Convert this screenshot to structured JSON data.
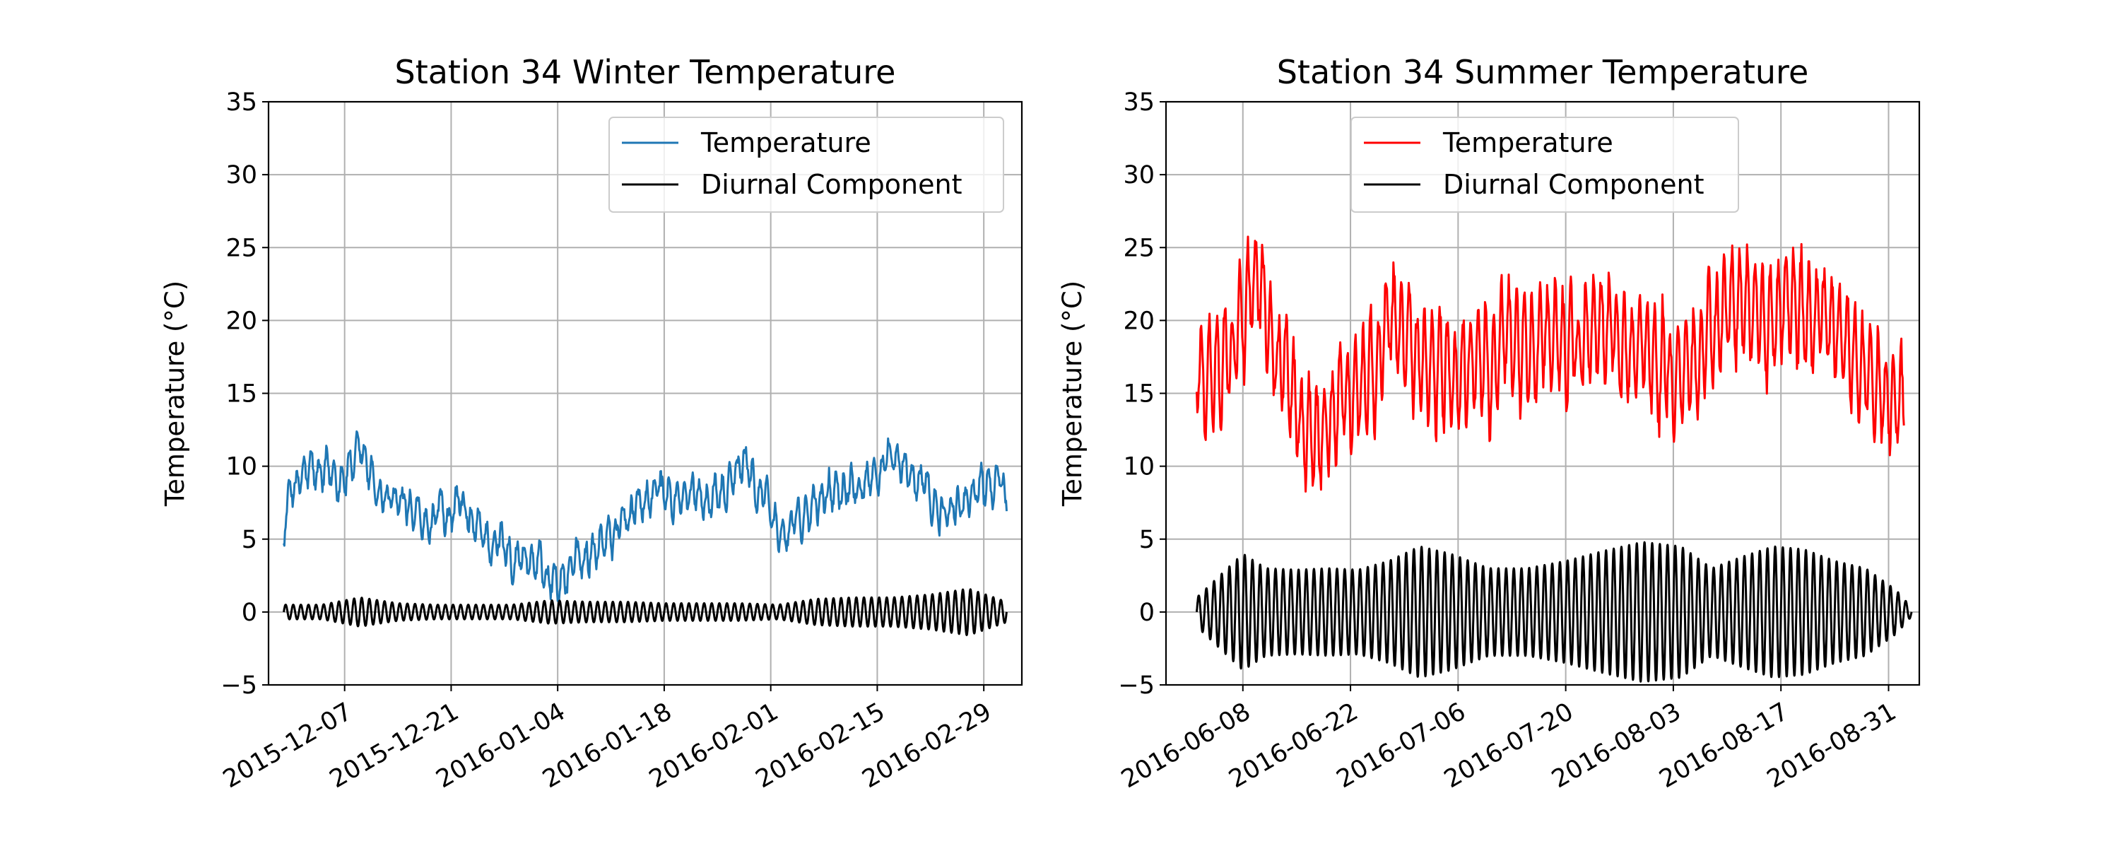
{
  "chart_data": [
    {
      "type": "line",
      "title": "Station 34 Winter Temperature",
      "xlabel": "",
      "ylabel": "Temperature ($^\\circ$C)",
      "ylim": [
        -5,
        35
      ],
      "yticks": [
        -5,
        0,
        5,
        10,
        15,
        20,
        25,
        30,
        35
      ],
      "xlim": [
        "2015-11-27",
        "2016-03-05"
      ],
      "xticks": [
        "2015-12-07",
        "2015-12-21",
        "2016-01-04",
        "2016-01-18",
        "2016-02-01",
        "2016-02-15",
        "2016-02-29"
      ],
      "grid": true,
      "legend": "top-right",
      "series": [
        {
          "name": "Temperature",
          "color": "#1f77b4",
          "x": [
            "2015-11-29",
            "2015-11-30",
            "2015-12-02",
            "2015-12-04",
            "2015-12-06",
            "2015-12-08",
            "2015-12-10",
            "2015-12-12",
            "2015-12-14",
            "2015-12-16",
            "2015-12-18",
            "2015-12-20",
            "2015-12-22",
            "2015-12-24",
            "2015-12-26",
            "2015-12-28",
            "2015-12-30",
            "2016-01-01",
            "2016-01-03",
            "2016-01-05",
            "2016-01-07",
            "2016-01-09",
            "2016-01-11",
            "2016-01-13",
            "2016-01-15",
            "2016-01-17",
            "2016-01-19",
            "2016-01-21",
            "2016-01-23",
            "2016-01-25",
            "2016-01-27",
            "2016-01-29",
            "2016-01-31",
            "2016-02-02",
            "2016-02-04",
            "2016-02-06",
            "2016-02-08",
            "2016-02-10",
            "2016-02-12",
            "2016-02-14",
            "2016-02-16",
            "2016-02-18",
            "2016-02-20",
            "2016-02-22",
            "2016-02-24",
            "2016-02-26",
            "2016-02-28",
            "2016-03-01",
            "2016-03-03"
          ],
          "y": [
            5.8,
            8.5,
            9.5,
            9.0,
            9.2,
            10.5,
            9.5,
            8.0,
            7.0,
            6.0,
            5.5,
            6.5,
            7.0,
            5.5,
            5.0,
            4.5,
            4.0,
            3.5,
            2.5,
            2.5,
            3.5,
            5.0,
            5.5,
            6.5,
            7.5,
            8.0,
            8.0,
            7.5,
            8.0,
            8.5,
            9.5,
            10.0,
            8.0,
            5.5,
            5.8,
            6.5,
            8.0,
            9.0,
            10.0,
            9.5,
            10.0,
            9.5,
            9.0,
            8.0,
            7.0,
            7.5,
            8.5,
            9.0,
            8.5
          ]
        },
        {
          "name": "Diurnal Component",
          "color": "#000000",
          "amplitude_x": [
            "2015-11-29",
            "2015-12-04",
            "2015-12-09",
            "2015-12-14",
            "2015-12-19",
            "2015-12-24",
            "2015-12-29",
            "2016-01-03",
            "2016-01-08",
            "2016-01-13",
            "2016-01-18",
            "2016-01-23",
            "2016-01-28",
            "2016-02-02",
            "2016-02-07",
            "2016-02-12",
            "2016-02-17",
            "2016-02-22",
            "2016-02-27",
            "2016-03-03"
          ],
          "amplitude": [
            0.5,
            0.5,
            1.0,
            0.6,
            0.5,
            0.5,
            0.5,
            0.8,
            0.7,
            0.7,
            0.6,
            0.6,
            0.6,
            0.5,
            0.9,
            1.0,
            1.0,
            1.2,
            1.6,
            0.7
          ]
        }
      ]
    },
    {
      "type": "line",
      "title": "Station 34 Summer Temperature",
      "xlabel": "",
      "ylabel": "Temperature ($^\\circ$C)",
      "ylim": [
        -5,
        35
      ],
      "yticks": [
        -5,
        0,
        5,
        10,
        15,
        20,
        25,
        30,
        35
      ],
      "xlim": [
        "2016-05-29",
        "2016-09-04"
      ],
      "xticks": [
        "2016-06-08",
        "2016-06-22",
        "2016-07-06",
        "2016-07-20",
        "2016-08-03",
        "2016-08-17",
        "2016-08-31"
      ],
      "grid": true,
      "legend": "top-center",
      "series": [
        {
          "name": "Temperature",
          "color": "#ff0000",
          "x": [
            "2016-06-02",
            "2016-06-04",
            "2016-06-06",
            "2016-06-08",
            "2016-06-10",
            "2016-06-12",
            "2016-06-14",
            "2016-06-16",
            "2016-06-18",
            "2016-06-20",
            "2016-06-22",
            "2016-06-24",
            "2016-06-26",
            "2016-06-28",
            "2016-06-30",
            "2016-07-02",
            "2016-07-04",
            "2016-07-06",
            "2016-07-08",
            "2016-07-10",
            "2016-07-12",
            "2016-07-14",
            "2016-07-16",
            "2016-07-18",
            "2016-07-20",
            "2016-07-22",
            "2016-07-24",
            "2016-07-26",
            "2016-07-28",
            "2016-07-30",
            "2016-08-01",
            "2016-08-03",
            "2016-08-05",
            "2016-08-07",
            "2016-08-09",
            "2016-08-11",
            "2016-08-13",
            "2016-08-15",
            "2016-08-17",
            "2016-08-19",
            "2016-08-21",
            "2016-08-23",
            "2016-08-25",
            "2016-08-27",
            "2016-08-29",
            "2016-08-31",
            "2016-09-02"
          ],
          "y": [
            17,
            16,
            17,
            20,
            24,
            19,
            15,
            12,
            12,
            13,
            15,
            16,
            17,
            20,
            18,
            17,
            16,
            16,
            17,
            17,
            18,
            17,
            18,
            19,
            19,
            19,
            19,
            19,
            18,
            18,
            18,
            17,
            17,
            18,
            19,
            20,
            21,
            20,
            22,
            21,
            20,
            20,
            19,
            18,
            15,
            14,
            14
          ]
        },
        {
          "name": "Diurnal Component",
          "color": "#000000",
          "amplitude_x": [
            "2016-06-02",
            "2016-06-05",
            "2016-06-08",
            "2016-06-11",
            "2016-06-15",
            "2016-06-19",
            "2016-06-23",
            "2016-06-27",
            "2016-07-01",
            "2016-07-05",
            "2016-07-10",
            "2016-07-15",
            "2016-07-20",
            "2016-07-25",
            "2016-07-30",
            "2016-08-04",
            "2016-08-08",
            "2016-08-12",
            "2016-08-16",
            "2016-08-20",
            "2016-08-24",
            "2016-08-28",
            "2016-09-01",
            "2016-09-03"
          ],
          "amplitude": [
            1.0,
            2.5,
            4.0,
            3.0,
            2.9,
            3.0,
            2.9,
            3.5,
            4.5,
            4.0,
            3.0,
            3.0,
            3.5,
            4.2,
            4.8,
            4.5,
            3.0,
            3.8,
            4.5,
            4.3,
            3.5,
            3.0,
            1.5,
            0.3
          ]
        }
      ]
    }
  ]
}
